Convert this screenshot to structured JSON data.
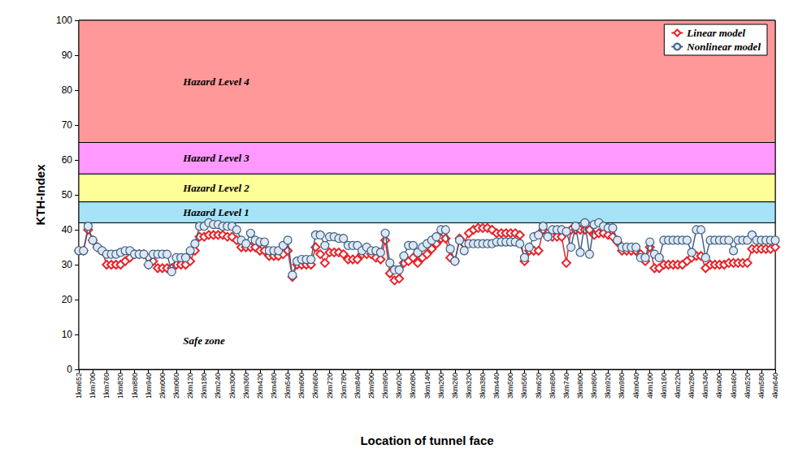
{
  "chart_data": {
    "type": "line",
    "x_label": "Location of tunnel face",
    "y_label": "KTH-Index",
    "categories": [
      "1km652",
      null,
      null,
      "1km700",
      null,
      null,
      "1km760",
      null,
      null,
      "1km820",
      null,
      null,
      "1km880",
      null,
      null,
      "1km940",
      null,
      null,
      "2km000",
      null,
      null,
      "2km060",
      null,
      null,
      "2km120",
      null,
      null,
      "2km180",
      null,
      null,
      "2km240",
      null,
      null,
      "2km300",
      null,
      null,
      "2km360",
      null,
      null,
      "2km420",
      null,
      null,
      "2km480",
      null,
      null,
      "2km540",
      null,
      null,
      "2km600",
      null,
      null,
      "2km660",
      null,
      null,
      "2km720",
      null,
      null,
      "2km780",
      null,
      null,
      "2km840",
      null,
      null,
      "2km900",
      null,
      null,
      "2km960",
      null,
      null,
      "3km020",
      null,
      null,
      "3km080",
      null,
      null,
      "3km140",
      null,
      null,
      "3km200",
      null,
      null,
      "3km260",
      null,
      null,
      "3km320",
      null,
      null,
      "3km380",
      null,
      null,
      "3km440",
      null,
      null,
      "3km500",
      null,
      null,
      "3km560",
      null,
      null,
      "3km620",
      null,
      null,
      "3km680",
      null,
      null,
      "3km740",
      null,
      null,
      "3km800",
      null,
      null,
      "3km860",
      null,
      null,
      "3km920",
      null,
      null,
      "3km980",
      null,
      null,
      "4km040",
      null,
      null,
      "4km100",
      null,
      null,
      "4km160",
      null,
      null,
      "4km220",
      null,
      null,
      "4km280",
      null,
      null,
      "4km340",
      null,
      null,
      "4km400",
      null,
      null,
      "4km460",
      null,
      null,
      "4km520",
      null,
      null,
      "4km580",
      null,
      null,
      "4km640"
    ],
    "series": [
      {
        "name": "Linear model",
        "color": "#e8242a",
        "marker": "diamond",
        "values": [
          34,
          34,
          40,
          37,
          35,
          34,
          30,
          30,
          30,
          30,
          31,
          32,
          33,
          33,
          33,
          30,
          31,
          29,
          29,
          29,
          29,
          30,
          30,
          30,
          31,
          34,
          38,
          38,
          38.5,
          38.5,
          38.5,
          38.5,
          38,
          38,
          37,
          35,
          35,
          35,
          35,
          34,
          34,
          32.5,
          32.5,
          32.5,
          33,
          34,
          26.5,
          30,
          30,
          30,
          30,
          35,
          33,
          30.5,
          33.5,
          33.5,
          33.5,
          33,
          31.5,
          31.5,
          31.5,
          33,
          33,
          33,
          32,
          31.5,
          37,
          27.5,
          25.5,
          26,
          30.5,
          31,
          32,
          30.5,
          32,
          33,
          34.5,
          36,
          37.5,
          37.5,
          32,
          31,
          37.5,
          36,
          39,
          40,
          40.5,
          40.5,
          40.5,
          40,
          39,
          39,
          39,
          39,
          39,
          38.5,
          31,
          34,
          34,
          34,
          40,
          38,
          38,
          38,
          38,
          30.5,
          40,
          40,
          40,
          40,
          40,
          38.5,
          39,
          39,
          38.5,
          38,
          36.5,
          34,
          34,
          34,
          34,
          33,
          31,
          35,
          29,
          29,
          30,
          30,
          30,
          30,
          30,
          31,
          32,
          32.5,
          32.5,
          29,
          30,
          30,
          30,
          30,
          30.5,
          30.5,
          30.5,
          30.5,
          30.5,
          34.5,
          34.5,
          34.5,
          34.5,
          34.5,
          35
        ]
      },
      {
        "name": "Nonlinear model",
        "color": "#3f5f82",
        "marker": "circle",
        "values": [
          34,
          34,
          41,
          37,
          35,
          34,
          33,
          33,
          33,
          33.5,
          34,
          34,
          33,
          33,
          33,
          30,
          33,
          33,
          33,
          33,
          28,
          32,
          32,
          32,
          34,
          36,
          41,
          41,
          42,
          41.5,
          41.5,
          41,
          41,
          41,
          40,
          37,
          36,
          39,
          37,
          36.5,
          36.5,
          34,
          34,
          34,
          35.5,
          37,
          27,
          31,
          31.5,
          31.5,
          31.5,
          38.5,
          38.5,
          35.5,
          38,
          38,
          37.5,
          37.5,
          35.5,
          35.5,
          35.5,
          34,
          35,
          34,
          34,
          33.5,
          39,
          30.5,
          28.5,
          28.5,
          32.5,
          35.5,
          35.5,
          33.5,
          35,
          36,
          37,
          38,
          40,
          40,
          34.5,
          31,
          37,
          34,
          36,
          36,
          36,
          36,
          36,
          36,
          36.5,
          36.5,
          36.5,
          36.5,
          36.5,
          36,
          32,
          35,
          38,
          38.5,
          41,
          38,
          40,
          40,
          40,
          39.5,
          35,
          41,
          33.5,
          42,
          33,
          41.5,
          42,
          41,
          40.5,
          40.5,
          37,
          35,
          35,
          35,
          35,
          32,
          32,
          36.5,
          33,
          32,
          37,
          37,
          37,
          37,
          37,
          37,
          33.5,
          40,
          40,
          32,
          37,
          37,
          37,
          37,
          37,
          34,
          37,
          37,
          37,
          38.5,
          37,
          37,
          37,
          37,
          37
        ]
      }
    ],
    "ylim": [
      0,
      100
    ],
    "yticks": [
      0,
      10,
      20,
      30,
      40,
      50,
      60,
      70,
      80,
      90,
      100
    ],
    "grid": false,
    "legend": "upper right",
    "zones": [
      {
        "name": "Safe zone",
        "from": 0,
        "to": 42,
        "color": "#ffffff"
      },
      {
        "name": "Hazard Level 1",
        "from": 42,
        "to": 48,
        "color": "#a6e3f7"
      },
      {
        "name": "Hazard Level 2",
        "from": 48,
        "to": 56,
        "color": "#ffff99"
      },
      {
        "name": "Hazard Level 3",
        "from": 56,
        "to": 65,
        "color": "#ff99ff"
      },
      {
        "name": "Hazard Level 4",
        "from": 65,
        "to": 100,
        "color": "#ff9999"
      }
    ]
  }
}
